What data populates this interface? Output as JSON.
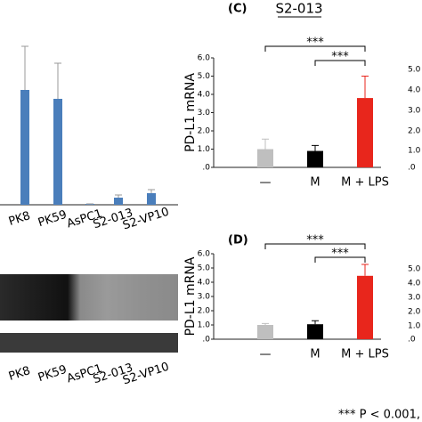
{
  "chart_data": [
    {
      "type": "bar",
      "categories": [
        "PK8",
        "PK59",
        "AsPC1",
        "S2-013",
        "S2-VP10"
      ],
      "values": [
        1.29,
        1.19,
        0.01,
        0.08,
        0.13
      ],
      "errors": [
        0.49,
        0.4,
        0,
        0.03,
        0.04
      ],
      "color": "#4a7ebb",
      "ylim": [
        0,
        2.1
      ]
    },
    {
      "type": "bar",
      "panel_label": "(C)",
      "title": "S2-013",
      "y_label": "PD-L1 mRNA",
      "categories": [
        "—",
        "M",
        "M + LPS"
      ],
      "values": [
        1.0,
        0.9,
        3.8
      ],
      "errors": [
        0.55,
        0.3,
        1.2
      ],
      "colors": [
        "#bfbfbf",
        "#000000",
        "#e8261c"
      ],
      "ylim": [
        0,
        6
      ],
      "yticks": [
        {
          "value": 0,
          "label": ".0"
        },
        {
          "value": 1,
          "label": "1.0"
        },
        {
          "value": 2,
          "label": "2.0"
        },
        {
          "value": 3,
          "label": "3.0"
        },
        {
          "value": 4,
          "label": "4.0"
        },
        {
          "value": 5,
          "label": "5.0"
        },
        {
          "value": 6,
          "label": "6.0"
        }
      ],
      "annotations": [
        "***",
        "***"
      ]
    },
    {
      "type": "bar",
      "panel_label": "(D)",
      "y_label": "PD-L1 mRNA",
      "categories": [
        "—",
        "M",
        "M + LPS"
      ],
      "values": [
        1.0,
        1.05,
        4.45
      ],
      "errors": [
        0.1,
        0.25,
        0.8
      ],
      "colors": [
        "#bfbfbf",
        "#000000",
        "#e8261c"
      ],
      "ylim": [
        0,
        6
      ],
      "yticks": [
        {
          "value": 0,
          "label": ".0"
        },
        {
          "value": 1,
          "label": "1.0"
        },
        {
          "value": 2,
          "label": "2.0"
        },
        {
          "value": 3,
          "label": "3.0"
        },
        {
          "value": 4,
          "label": "4.0"
        },
        {
          "value": 5,
          "label": "5.0"
        },
        {
          "value": 6,
          "label": "6.0"
        }
      ],
      "annotations": [
        "***",
        "***"
      ]
    }
  ],
  "blot": {
    "lanes": [
      "PK8",
      "PK59",
      "AsPC1",
      "S2-013",
      "S2-VP10"
    ]
  },
  "cropped_ticks_top": [
    "5.0",
    "4.0",
    "3.0",
    "2.0",
    "1.0",
    ".0"
  ],
  "cropped_ticks_bottom": [
    "5.0",
    "4.0",
    "3.0",
    "2.0",
    "1.0",
    ".0"
  ],
  "footnote": "*** P < 0.001, "
}
